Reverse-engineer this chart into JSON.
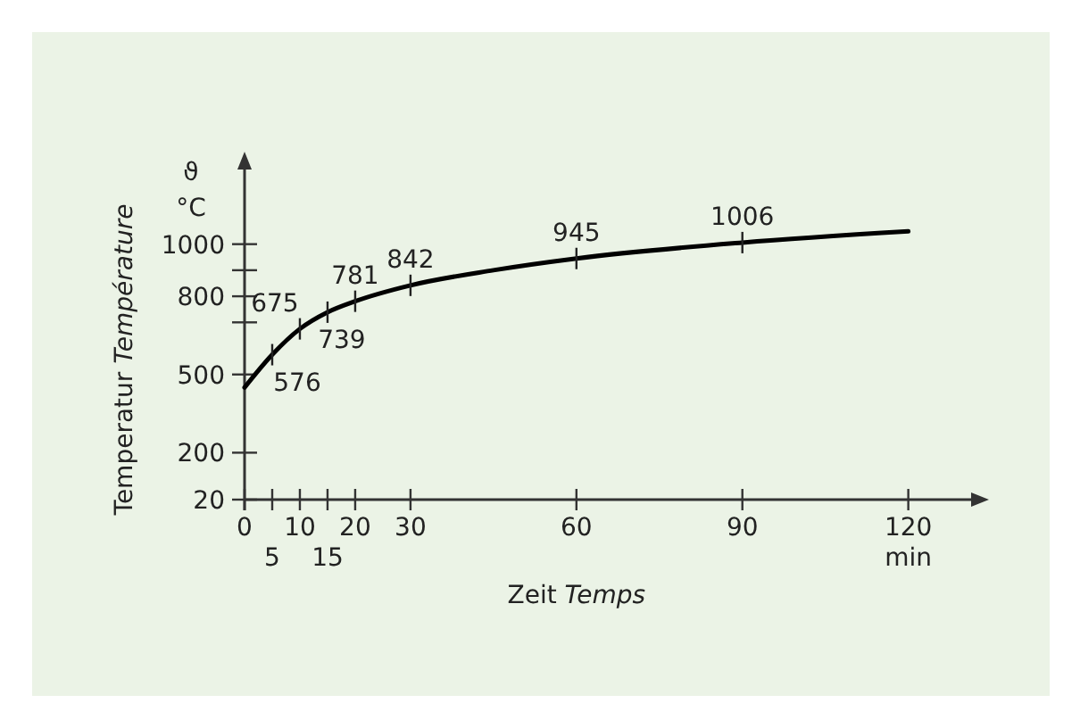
{
  "chart_data": {
    "type": "line",
    "xlabel": "Zeit Temps",
    "ylabel": "Temperatur Température",
    "annotations": [
      "ϑ",
      "°C",
      "min",
      "5",
      "15"
    ],
    "x": [
      0,
      5,
      10,
      15,
      20,
      30,
      45,
      60,
      90,
      120
    ],
    "series": [
      {
        "color": "#000000",
        "values": [
          450,
          576,
          675,
          739,
          781,
          842,
          900,
          945,
          1006,
          1049
        ],
        "value_labels": [
          null,
          "576",
          "675",
          "739",
          "781",
          "842",
          null,
          "945",
          "1006",
          null
        ]
      }
    ],
    "xlim": [
      0,
      132
    ],
    "xticks": [
      0,
      {
        "value": 5,
        "label": null
      },
      10,
      {
        "value": 15,
        "label": null
      },
      20,
      30,
      60,
      90,
      120
    ],
    "ylim": [
      20,
      1300
    ],
    "yticks": [
      20,
      200,
      500,
      {
        "value": 700,
        "label": null
      },
      800,
      {
        "value": 900,
        "label": null
      },
      1000
    ],
    "grid": false,
    "marker": "none",
    "line_style": "solid"
  }
}
